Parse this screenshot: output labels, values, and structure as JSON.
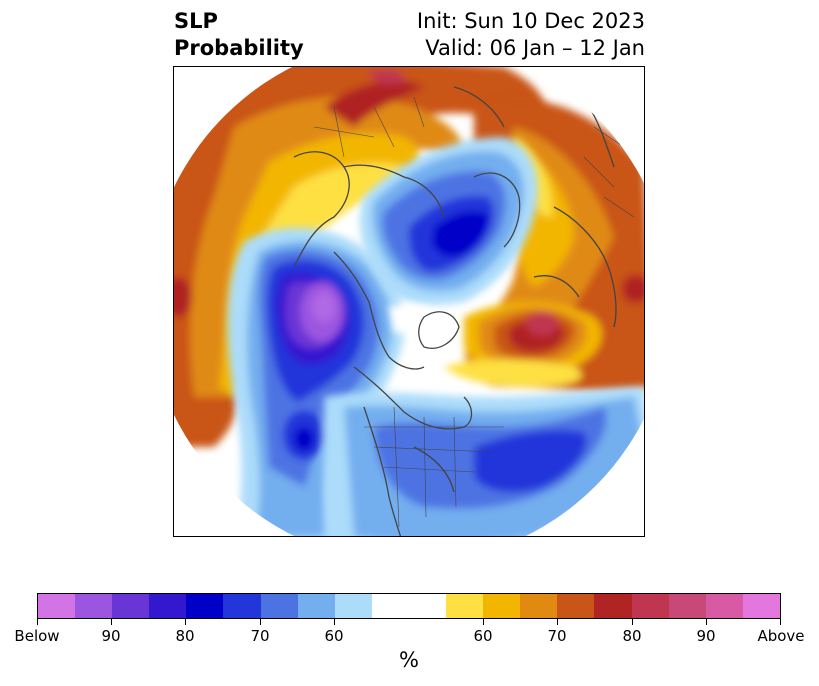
{
  "title": {
    "left_line1": "SLP",
    "left_line2": "Probability",
    "right_line1": "Init: Sun 10 Dec 2023",
    "right_line2": "Valid: 06 Jan – 12 Jan"
  },
  "colorbar": {
    "unit": "%",
    "colors": [
      "#d274e6",
      "#9b55e0",
      "#6a35d6",
      "#3418d0",
      "#0000c8",
      "#2236da",
      "#4d73e3",
      "#73aeef",
      "#acdcfa",
      "#ffffff",
      "#fee043",
      "#f3b600",
      "#e08a12",
      "#c95519",
      "#b02424",
      "#c03550",
      "#c84878",
      "#d85aa5",
      "#e477dd"
    ],
    "tick_labels": [
      "Below",
      "90",
      "80",
      "70",
      "60",
      "60",
      "70",
      "80",
      "90",
      "Above"
    ]
  },
  "map": {
    "region": "Northern Hemisphere polar stereographic",
    "features": [
      "coastlines",
      "country-borders",
      "us-state-borders"
    ]
  }
}
